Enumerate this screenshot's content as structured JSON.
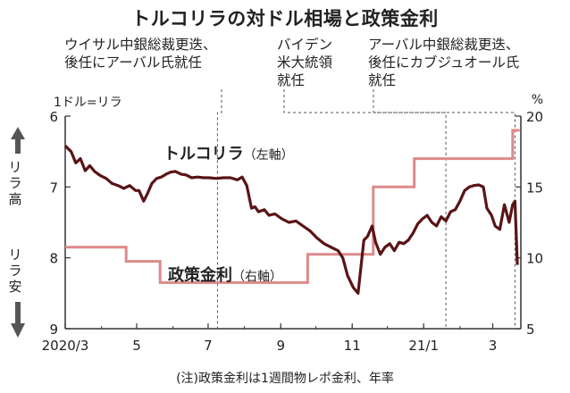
{
  "title": "トルコリラの対ドル相場と政策金利",
  "annotations": [
    "ウイサル中銀総裁更迭、\n後任にアーバル氏就任",
    "バイデン\n米大統領\n就任",
    "アーバル中銀総裁更迭、\n後任にカブジュオール氏\n就任"
  ],
  "left_unit": "1ドル=リラ",
  "right_unit": "%",
  "direction_high": "リラ高",
  "direction_low": "リラ安",
  "note": "(注)政策金利は1週間物レポ金利、年率",
  "colors": {
    "lira": "#5a1416",
    "rate": "#dd8a8a",
    "axis": "#333333",
    "guide": "#555555",
    "arrow": "#555555"
  },
  "chart_data": {
    "type": "line",
    "title": "トルコリラの対ドル相場と政策金利",
    "x_ticks": [
      "2020/3",
      "5",
      "7",
      "9",
      "11",
      "21/1",
      "3"
    ],
    "x_range": [
      "2020-03-01",
      "2021-03-25"
    ],
    "y_left": {
      "label": "1ドル=リラ",
      "ticks": [
        6,
        7,
        8,
        9
      ],
      "range": [
        6,
        9
      ],
      "inverted": true
    },
    "y_right": {
      "label": "%",
      "ticks": [
        20,
        15,
        10,
        5
      ],
      "range": [
        5,
        20
      ]
    },
    "events": [
      {
        "date": "2020-07-09",
        "label": "ウイサル中銀総裁更迭、後任にアーバル氏就任"
      },
      {
        "date": "2021-01-20",
        "label": "バイデン米大統領就任"
      },
      {
        "date": "2021-03-20",
        "label": "アーバル中銀総裁更迭、後任にカブジュオール氏就任"
      }
    ],
    "series": [
      {
        "name": "トルコリラ",
        "axis_note": "左軸",
        "axis": "left",
        "points": [
          [
            "2020-03-01",
            6.42
          ],
          [
            "2020-03-06",
            6.5
          ],
          [
            "2020-03-10",
            6.66
          ],
          [
            "2020-03-14",
            6.6
          ],
          [
            "2020-03-18",
            6.77
          ],
          [
            "2020-03-22",
            6.7
          ],
          [
            "2020-03-26",
            6.78
          ],
          [
            "2020-03-31",
            6.84
          ],
          [
            "2020-04-05",
            6.88
          ],
          [
            "2020-04-10",
            6.95
          ],
          [
            "2020-04-15",
            6.98
          ],
          [
            "2020-04-20",
            7.02
          ],
          [
            "2020-04-25",
            6.98
          ],
          [
            "2020-04-30",
            7.05
          ],
          [
            "2020-05-03",
            7.05
          ],
          [
            "2020-05-07",
            7.2
          ],
          [
            "2020-05-10",
            7.1
          ],
          [
            "2020-05-14",
            6.95
          ],
          [
            "2020-05-18",
            6.88
          ],
          [
            "2020-05-22",
            6.86
          ],
          [
            "2020-05-26",
            6.82
          ],
          [
            "2020-05-30",
            6.79
          ],
          [
            "2020-06-03",
            6.78
          ],
          [
            "2020-06-08",
            6.82
          ],
          [
            "2020-06-12",
            6.83
          ],
          [
            "2020-06-17",
            6.87
          ],
          [
            "2020-06-22",
            6.86
          ],
          [
            "2020-06-27",
            6.87
          ],
          [
            "2020-07-02",
            6.87
          ],
          [
            "2020-07-08",
            6.88
          ],
          [
            "2020-07-14",
            6.87
          ],
          [
            "2020-07-20",
            6.87
          ],
          [
            "2020-07-26",
            6.9
          ],
          [
            "2020-07-30",
            6.86
          ],
          [
            "2020-08-03",
            6.98
          ],
          [
            "2020-08-07",
            7.3
          ],
          [
            "2020-08-10",
            7.28
          ],
          [
            "2020-08-13",
            7.35
          ],
          [
            "2020-08-18",
            7.32
          ],
          [
            "2020-08-22",
            7.4
          ],
          [
            "2020-08-27",
            7.38
          ],
          [
            "2020-09-02",
            7.45
          ],
          [
            "2020-09-08",
            7.5
          ],
          [
            "2020-09-14",
            7.48
          ],
          [
            "2020-09-20",
            7.55
          ],
          [
            "2020-09-26",
            7.62
          ],
          [
            "2020-10-02",
            7.72
          ],
          [
            "2020-10-08",
            7.8
          ],
          [
            "2020-10-14",
            7.85
          ],
          [
            "2020-10-20",
            7.9
          ],
          [
            "2020-10-24",
            8.0
          ],
          [
            "2020-10-28",
            8.25
          ],
          [
            "2020-11-02",
            8.42
          ],
          [
            "2020-11-06",
            8.5
          ],
          [
            "2020-11-09",
            8.05
          ],
          [
            "2020-11-11",
            7.75
          ],
          [
            "2020-11-14",
            7.7
          ],
          [
            "2020-11-18",
            7.55
          ],
          [
            "2020-11-21",
            7.78
          ],
          [
            "2020-11-25",
            7.95
          ],
          [
            "2020-11-29",
            7.85
          ],
          [
            "2020-12-03",
            7.8
          ],
          [
            "2020-12-07",
            7.9
          ],
          [
            "2020-12-11",
            7.78
          ],
          [
            "2020-12-15",
            7.8
          ],
          [
            "2020-12-19",
            7.75
          ],
          [
            "2020-12-23",
            7.65
          ],
          [
            "2020-12-27",
            7.52
          ],
          [
            "2020-12-31",
            7.45
          ],
          [
            "2021-01-04",
            7.4
          ],
          [
            "2021-01-08",
            7.5
          ],
          [
            "2021-01-12",
            7.55
          ],
          [
            "2021-01-16",
            7.42
          ],
          [
            "2021-01-20",
            7.48
          ],
          [
            "2021-01-24",
            7.35
          ],
          [
            "2021-01-28",
            7.32
          ],
          [
            "2021-02-01",
            7.2
          ],
          [
            "2021-02-05",
            7.05
          ],
          [
            "2021-02-09",
            7.0
          ],
          [
            "2021-02-13",
            6.98
          ],
          [
            "2021-02-17",
            6.97
          ],
          [
            "2021-02-21",
            7.0
          ],
          [
            "2021-02-24",
            7.3
          ],
          [
            "2021-02-28",
            7.4
          ],
          [
            "2021-03-03",
            7.55
          ],
          [
            "2021-03-07",
            7.6
          ],
          [
            "2021-03-11",
            7.25
          ],
          [
            "2021-03-15",
            7.5
          ],
          [
            "2021-03-18",
            7.25
          ],
          [
            "2021-03-20",
            7.2
          ],
          [
            "2021-03-22",
            8.1
          ]
        ]
      },
      {
        "name": "政策金利",
        "axis_note": "右軸",
        "axis": "right",
        "points": [
          [
            "2020-03-01",
            10.75
          ],
          [
            "2020-04-22",
            10.75
          ],
          [
            "2020-04-22",
            9.75
          ],
          [
            "2020-05-21",
            9.75
          ],
          [
            "2020-05-21",
            8.25
          ],
          [
            "2020-09-24",
            8.25
          ],
          [
            "2020-09-24",
            10.25
          ],
          [
            "2020-11-19",
            10.25
          ],
          [
            "2020-11-19",
            15.0
          ],
          [
            "2020-12-24",
            15.0
          ],
          [
            "2020-12-24",
            17.0
          ],
          [
            "2021-03-18",
            17.0
          ],
          [
            "2021-03-18",
            19.0
          ],
          [
            "2021-03-24",
            19.0
          ]
        ]
      }
    ]
  }
}
